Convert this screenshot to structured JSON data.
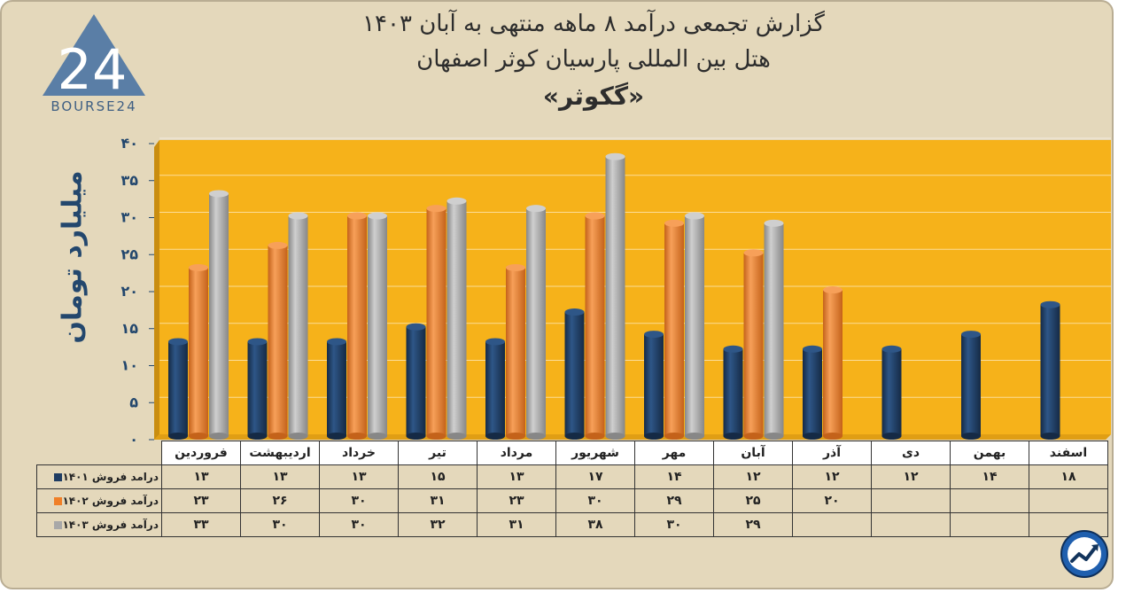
{
  "title": {
    "line1": "گزارش تجمعی درآمد ۸ ماهه منتهی به آبان ۱۴۰۳",
    "line2": "هتل بین المللی پارسیان کوثر اصفهان",
    "line3": "«گکوثر»"
  },
  "logo": {
    "text": "BOURSE24",
    "mark": "24"
  },
  "colors": {
    "s1401": "#1f3d63",
    "s1402": "#f07f27",
    "s1403": "#a8a8a8",
    "plot_bg": "#f6b21a",
    "axis_text": "#23476d"
  },
  "chart_data": {
    "type": "bar",
    "ylabel": "میلیارد تومان",
    "ylim": [
      0,
      40
    ],
    "yticks": [
      "۰",
      "۵",
      "۱۰",
      "۱۵",
      "۲۰",
      "۲۵",
      "۳۰",
      "۳۵",
      "۴۰"
    ],
    "grid": true,
    "categories": [
      "فروردین",
      "اردیبهشت",
      "خرداد",
      "تیر",
      "مرداد",
      "شهریور",
      "مهر",
      "آبان",
      "آذر",
      "دی",
      "بهمن",
      "اسفند"
    ],
    "series": [
      {
        "name": "درامد فروش ۱۴۰۱",
        "values": [
          13,
          13,
          13,
          15,
          13,
          17,
          14,
          12,
          12,
          12,
          14,
          18
        ],
        "labels": [
          "۱۳",
          "۱۳",
          "۱۳",
          "۱۵",
          "۱۳",
          "۱۷",
          "۱۴",
          "۱۲",
          "۱۲",
          "۱۲",
          "۱۴",
          "۱۸"
        ]
      },
      {
        "name": "درآمد فروش ۱۴۰۲",
        "values": [
          23,
          26,
          30,
          31,
          23,
          30,
          29,
          25,
          20,
          null,
          null,
          null
        ],
        "labels": [
          "۲۳",
          "۲۶",
          "۳۰",
          "۳۱",
          "۲۳",
          "۳۰",
          "۲۹",
          "۲۵",
          "۲۰",
          "",
          "",
          ""
        ]
      },
      {
        "name": "درآمد فروش ۱۴۰۳",
        "values": [
          33,
          30,
          30,
          32,
          31,
          38,
          30,
          29,
          null,
          null,
          null,
          null
        ],
        "labels": [
          "۳۳",
          "۳۰",
          "۳۰",
          "۳۲",
          "۳۱",
          "۳۸",
          "۳۰",
          "۲۹",
          "",
          "",
          "",
          ""
        ]
      }
    ]
  }
}
